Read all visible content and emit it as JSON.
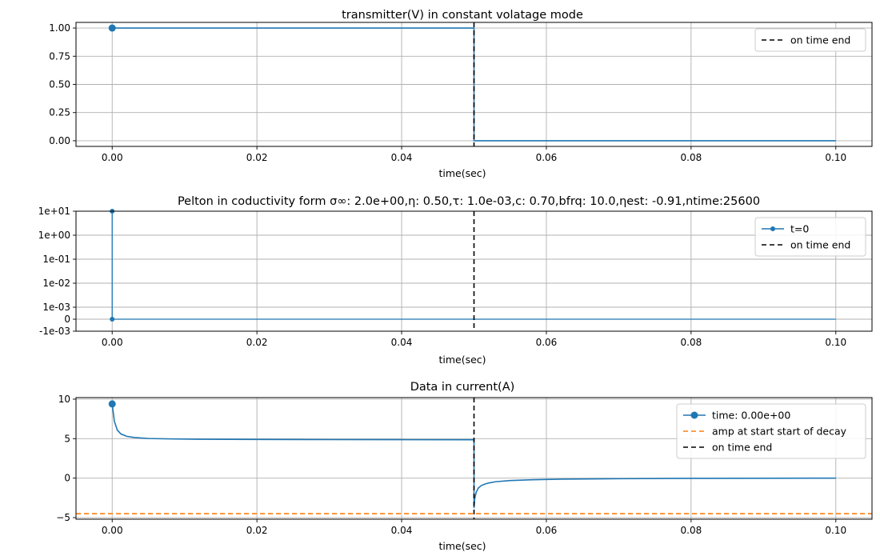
{
  "chart_data": [
    {
      "type": "line",
      "title": "transmitter(V) in constant volatage mode",
      "xlabel": "time(sec)",
      "ylabel": "",
      "xlim": [
        -0.005,
        0.105
      ],
      "ylim": [
        -0.05,
        1.05
      ],
      "scale": "linear",
      "grid": true,
      "legend_position": "top-right",
      "x_ticks": [
        0.0,
        0.02,
        0.04,
        0.06,
        0.08,
        0.1
      ],
      "x_tick_labels": [
        "0.00",
        "0.02",
        "0.04",
        "0.06",
        "0.08",
        "0.10"
      ],
      "y_ticks": [
        0.0,
        0.25,
        0.5,
        0.75,
        1.0
      ],
      "y_tick_labels": [
        "0.00",
        "0.25",
        "0.50",
        "0.75",
        "1.00"
      ],
      "series": [
        {
          "color": "#1f77b4",
          "style": "line",
          "points": [
            [
              0.0,
              1.0
            ],
            [
              0.05,
              1.0
            ],
            [
              0.05,
              0.0
            ],
            [
              0.1,
              0.0
            ]
          ]
        },
        {
          "color": "#1f77b4",
          "style": "marker",
          "points": [
            [
              0.0,
              1.0
            ]
          ]
        }
      ],
      "vlines": [
        {
          "name": "on time end",
          "x": 0.05,
          "color": "#000000",
          "dash": true
        }
      ],
      "legend": [
        {
          "label": "on time end",
          "kind": "dashed",
          "color": "#000000"
        }
      ]
    },
    {
      "type": "line",
      "title": "Pelton in coductivity form σ∞: 2.0e+00,η:  0.50,τ: 1.0e-03,c:  0.70,bfrq:  10.0,ηest: -0.91,ntime:25600",
      "xlabel": "time(sec)",
      "ylabel": "",
      "xlim": [
        -0.005,
        0.105
      ],
      "scale": "symlog",
      "grid": true,
      "legend_position": "top-right",
      "x_ticks": [
        0.0,
        0.02,
        0.04,
        0.06,
        0.08,
        0.1
      ],
      "x_tick_labels": [
        "0.00",
        "0.02",
        "0.04",
        "0.06",
        "0.08",
        "0.10"
      ],
      "y_ticks": [
        -0.001,
        0,
        0.001,
        0.01,
        0.1,
        1,
        10
      ],
      "y_tick_labels": [
        "-1e-03",
        "0",
        "1e-03",
        "1e-02",
        "1e-01",
        "1e+00",
        "1e+01"
      ],
      "series": [
        {
          "name": "t=0",
          "color": "#1f77b4",
          "style": "line-marker",
          "points": [
            [
              0.0,
              10.0
            ],
            [
              0.0,
              0.0
            ],
            [
              0.1,
              0.0
            ]
          ],
          "marker_points": [
            [
              0.0,
              10.0
            ],
            [
              0.0,
              0.0
            ]
          ]
        }
      ],
      "vlines": [
        {
          "name": "on time end",
          "x": 0.05,
          "color": "#000000",
          "dash": true
        }
      ],
      "legend": [
        {
          "label": "t=0",
          "kind": "line-marker",
          "color": "#1f77b4"
        },
        {
          "label": "on time end",
          "kind": "dashed",
          "color": "#000000"
        }
      ]
    },
    {
      "type": "line",
      "title": "Data in current(A)",
      "xlabel": "time(sec)",
      "ylabel": "",
      "xlim": [
        -0.005,
        0.105
      ],
      "ylim": [
        -5.2,
        10.2
      ],
      "scale": "linear",
      "grid": true,
      "legend_position": "top-right",
      "x_ticks": [
        0.0,
        0.02,
        0.04,
        0.06,
        0.08,
        0.1
      ],
      "x_tick_labels": [
        "0.00",
        "0.02",
        "0.04",
        "0.06",
        "0.08",
        "0.10"
      ],
      "y_ticks": [
        -5,
        0,
        5,
        10
      ],
      "y_tick_labels": [
        "−5",
        "0",
        "5",
        "10"
      ],
      "series": [
        {
          "color": "#1f77b4",
          "style": "line",
          "points": [
            [
              0.0,
              9.4
            ],
            [
              0.0003,
              7.2
            ],
            [
              0.0007,
              6.1
            ],
            [
              0.0012,
              5.6
            ],
            [
              0.002,
              5.3
            ],
            [
              0.003,
              5.15
            ],
            [
              0.005,
              5.02
            ],
            [
              0.008,
              4.97
            ],
            [
              0.012,
              4.93
            ],
            [
              0.02,
              4.9
            ],
            [
              0.03,
              4.88
            ],
            [
              0.04,
              4.87
            ],
            [
              0.05,
              4.86
            ],
            [
              0.05,
              -3.8
            ],
            [
              0.0501,
              -2.6
            ],
            [
              0.0503,
              -1.8
            ],
            [
              0.0506,
              -1.25
            ],
            [
              0.051,
              -0.95
            ],
            [
              0.0515,
              -0.75
            ],
            [
              0.052,
              -0.62
            ],
            [
              0.053,
              -0.45
            ],
            [
              0.055,
              -0.3
            ],
            [
              0.058,
              -0.2
            ],
            [
              0.062,
              -0.13
            ],
            [
              0.07,
              -0.07
            ],
            [
              0.08,
              -0.03
            ],
            [
              0.09,
              -0.01
            ],
            [
              0.1,
              0.0
            ]
          ]
        },
        {
          "name": "time: 0.00e+00",
          "color": "#1f77b4",
          "style": "marker",
          "points": [
            [
              0.0,
              9.4
            ]
          ]
        }
      ],
      "hlines": [
        {
          "name": "amp at start start of decay",
          "y": -4.5,
          "color": "#ff7f0e",
          "dash": true
        }
      ],
      "vlines": [
        {
          "name": "on time end",
          "x": 0.05,
          "color": "#000000",
          "dash": true
        }
      ],
      "legend": [
        {
          "label": "time: 0.00e+00",
          "kind": "line-marker",
          "color": "#1f77b4"
        },
        {
          "label": "amp at start start of decay",
          "kind": "dashed",
          "color": "#ff7f0e"
        },
        {
          "label": "on time end",
          "kind": "dashed",
          "color": "#000000"
        }
      ]
    }
  ]
}
